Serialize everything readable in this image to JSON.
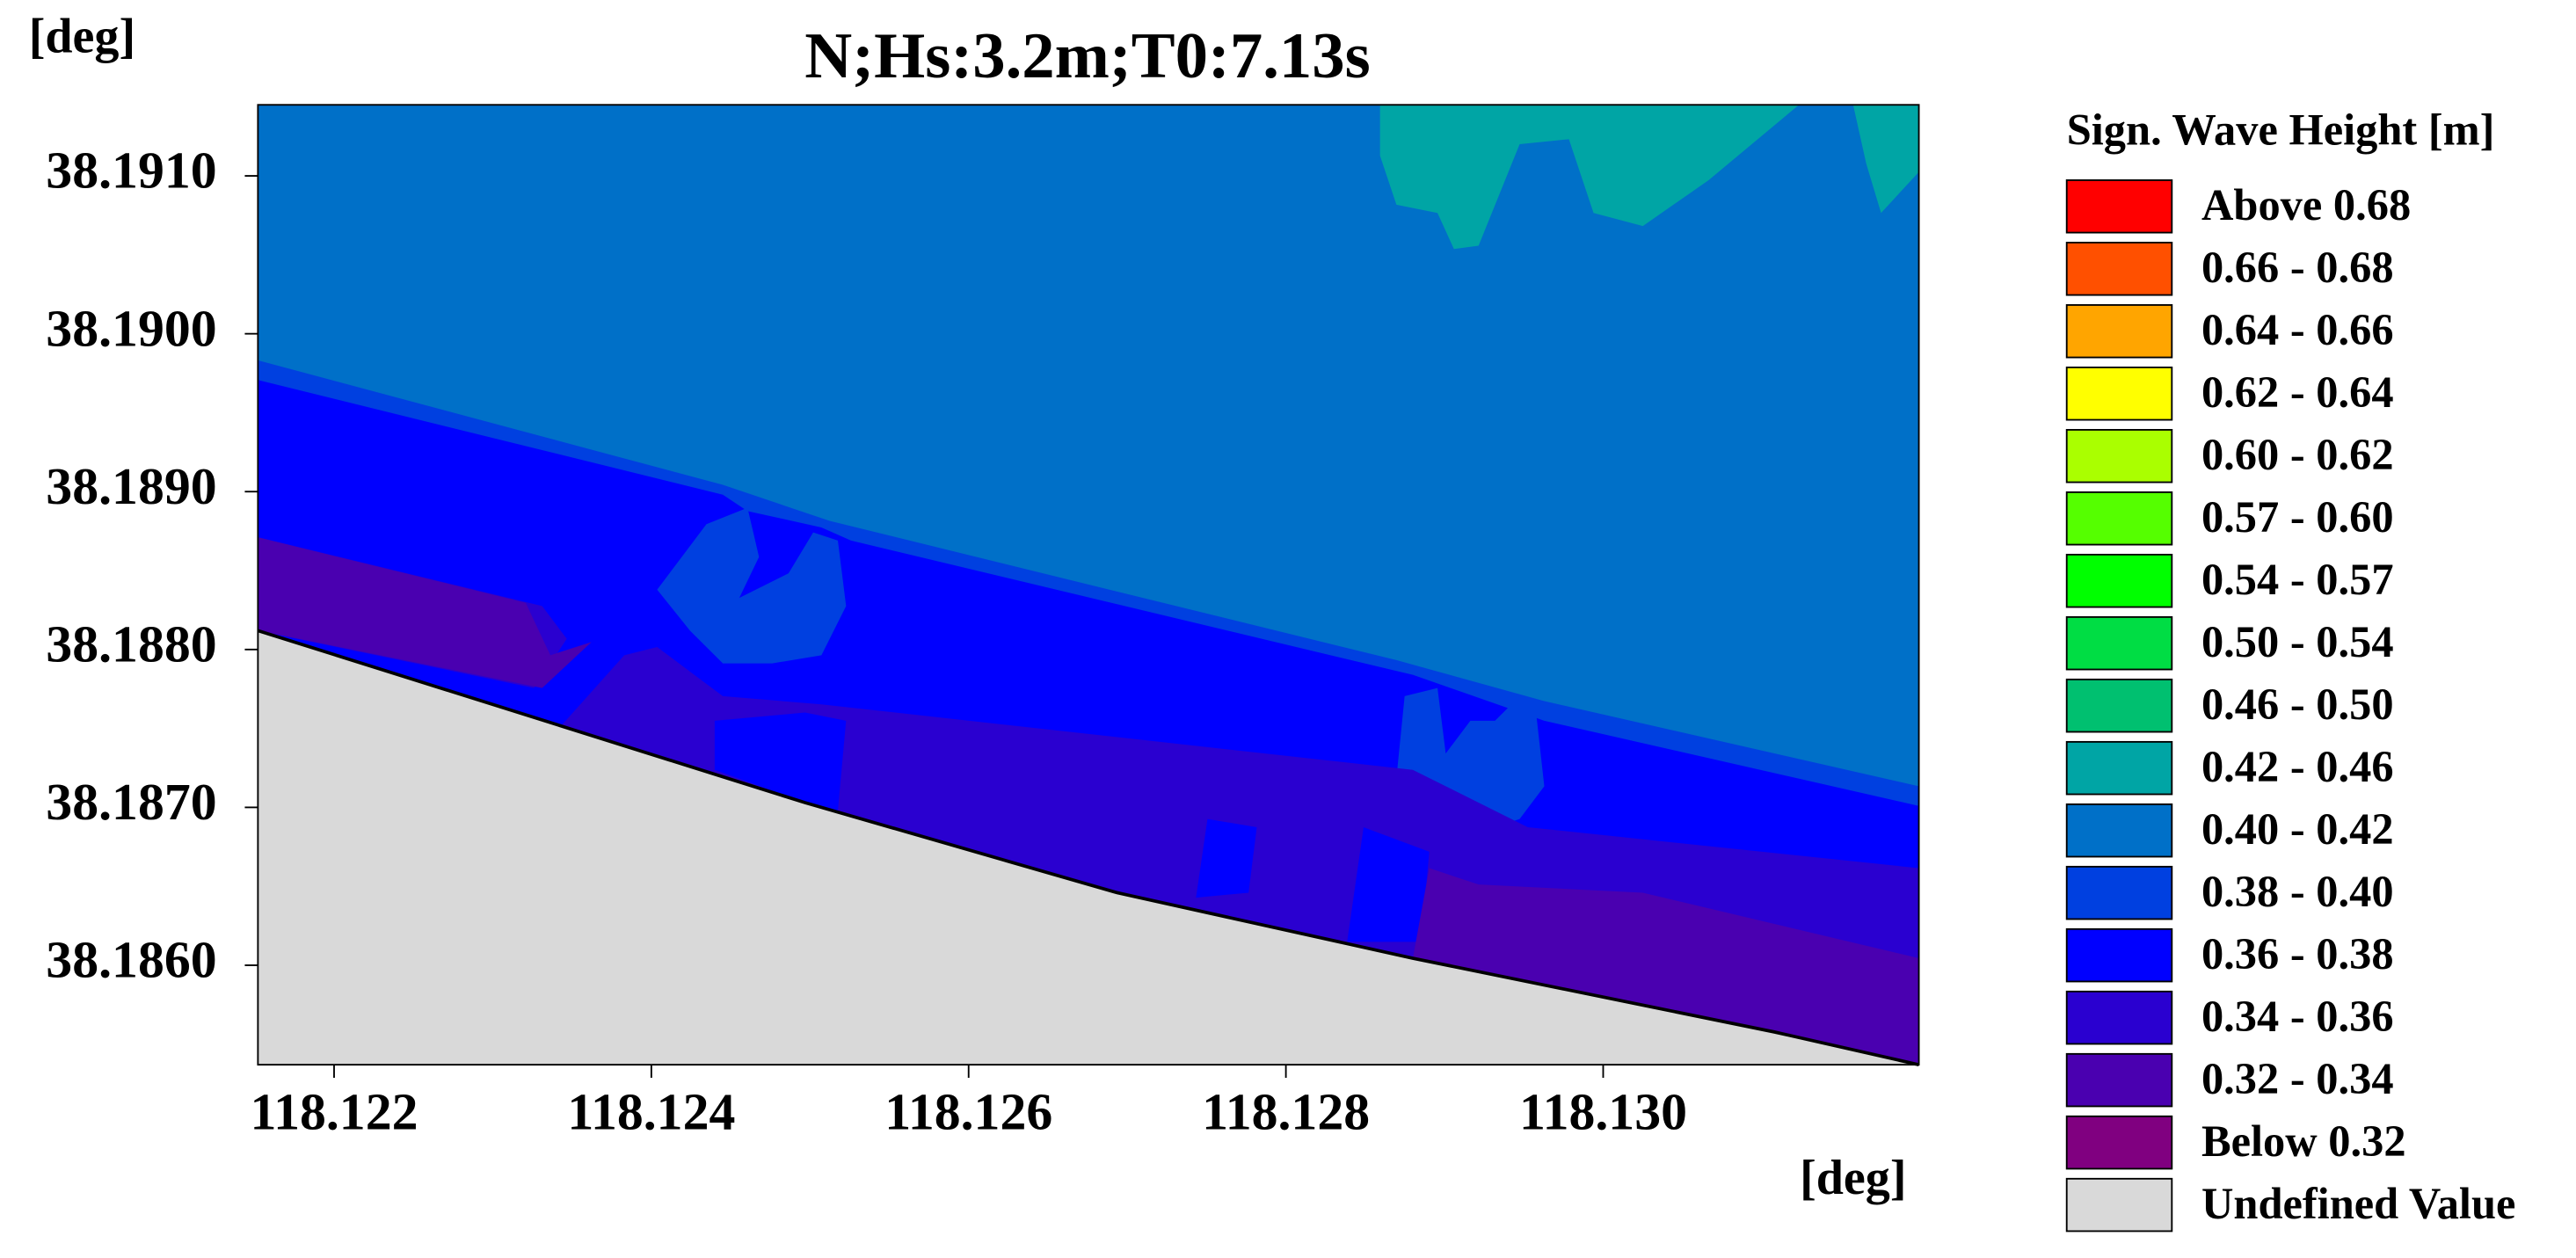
{
  "chart_data": {
    "type": "contour",
    "title": "N;Hs:3.2m;T0:7.13s",
    "xlabel": "[deg]",
    "ylabel": "[deg]",
    "xlim": [
      118.12152,
      118.13199
    ],
    "ylim": [
      38.18537,
      38.19145
    ],
    "xticks": [
      118.122,
      118.124,
      118.126,
      118.128,
      118.13
    ],
    "xtick_labels": [
      "118.122",
      "118.124",
      "118.126",
      "118.128",
      "118.130"
    ],
    "yticks": [
      {
        "value": 38.191,
        "label": "38.1910"
      },
      {
        "value": 38.19,
        "label": "38.1900"
      },
      {
        "value": 38.189,
        "label": "38.1890"
      },
      {
        "value": 38.188,
        "label": "38.1880"
      },
      {
        "value": 38.187,
        "label": "38.1870"
      },
      {
        "value": 38.186,
        "label": "38.1860"
      }
    ],
    "legend": {
      "title": "Sign. Wave Height [m]",
      "items": [
        {
          "label": "Above 0.68",
          "color": "#ff0000"
        },
        {
          "label": "0.66 - 0.68",
          "color": "#ff5000"
        },
        {
          "label": "0.64 - 0.66",
          "color": "#ffa500"
        },
        {
          "label": "0.62 - 0.64",
          "color": "#ffff00"
        },
        {
          "label": "0.60 - 0.62",
          "color": "#aaff00"
        },
        {
          "label": "0.57 - 0.60",
          "color": "#55ff00"
        },
        {
          "label": "0.54 - 0.57",
          "color": "#00ff00"
        },
        {
          "label": "0.50 - 0.54",
          "color": "#00dd44"
        },
        {
          "label": "0.46 - 0.50",
          "color": "#00c070"
        },
        {
          "label": "0.42 - 0.46",
          "color": "#00a5a5"
        },
        {
          "label": "0.40 - 0.42",
          "color": "#0070c8"
        },
        {
          "label": "0.38 - 0.40",
          "color": "#0040e0"
        },
        {
          "label": "0.36 - 0.38",
          "color": "#0000ff"
        },
        {
          "label": "0.34 - 0.36",
          "color": "#2a00d0"
        },
        {
          "label": "0.32 - 0.34",
          "color": "#4a00b0"
        },
        {
          "label": "Below 0.32",
          "color": "#800080"
        },
        {
          "label": "Undefined Value",
          "color": "#d9d9d9"
        }
      ]
    }
  }
}
